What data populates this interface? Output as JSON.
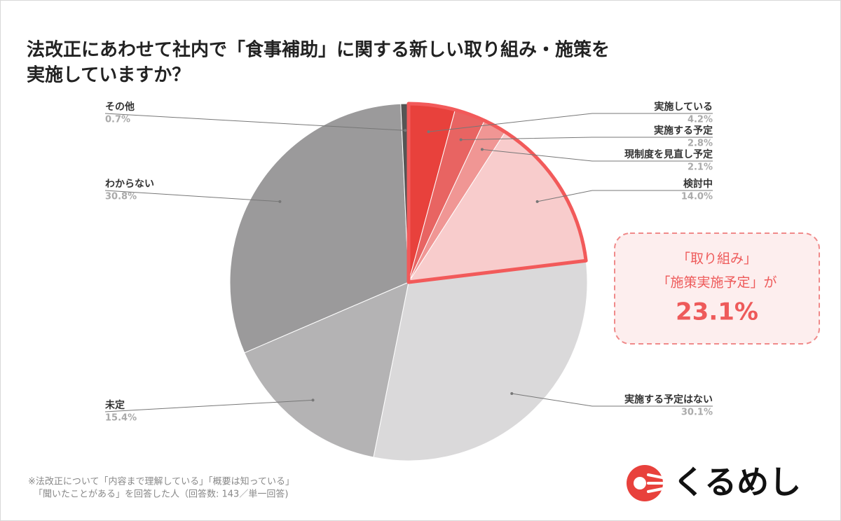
{
  "chart_data": {
    "type": "pie",
    "title": [
      "法改正にあわせて社内で「食事補助」に関する新しい取り組み・施策を",
      "実施していますか？"
    ],
    "categories": [
      "実施している",
      "実施する予定",
      "現制度を見直し予定",
      "検討中",
      "実施する予定はない",
      "未定",
      "わからない",
      "その他"
    ],
    "values": [
      4.2,
      2.8,
      2.1,
      14.0,
      30.1,
      15.4,
      30.8,
      0.7
    ],
    "value_labels": [
      "4.2%",
      "2.8%",
      "2.1%",
      "14.0%",
      "30.1%",
      "15.4%",
      "30.8%",
      "0.7%"
    ],
    "colors": [
      "#e8413c",
      "#e86462",
      "#f09694",
      "#f8cccc",
      "#dad9da",
      "#b4b3b4",
      "#9b9a9b",
      "#555555"
    ],
    "highlighted": [
      true,
      true,
      true,
      true,
      false,
      false,
      false,
      false
    ],
    "highlight_color": "#f25a5a",
    "annotation": {
      "lines": [
        "「取り組み」",
        "「施策実施予定」が"
      ],
      "value": "23.1%"
    },
    "footnote": [
      "※法改正について「内容まで理解している」「概要は知っている」",
      "「聞いたことがある」を回答した人（回答数: 143／単一回答)"
    ],
    "logo": "くるめし"
  }
}
